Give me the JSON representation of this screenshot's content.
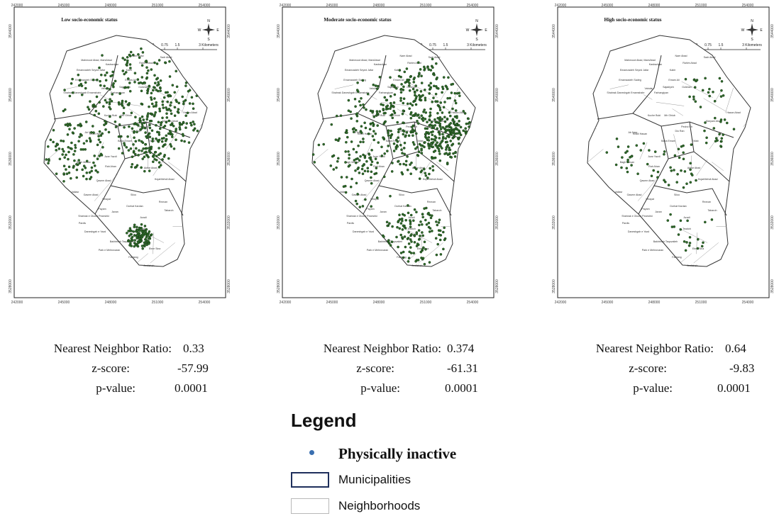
{
  "panels": [
    {
      "title": "Low socio-economic status",
      "x_ticks": [
        "242000",
        "245000",
        "248000",
        "251000",
        "254000"
      ],
      "y_ticks": [
        "3528000",
        "3532000",
        "3536000",
        "3540000",
        "3544000"
      ],
      "scale_ticks": [
        "0",
        "0.75",
        "1.5",
        "3 Kilometers"
      ],
      "point_density": 620,
      "stats": {
        "nnr_label": "Nearest Neighbor Ratio:",
        "nnr": "0.33",
        "z_label": "z-score:",
        "z": "-57.99",
        "p_label": "p-value:",
        "p": "0.0001"
      }
    },
    {
      "title": "Moderate socio-economic status",
      "x_ticks": [
        "242000",
        "245000",
        "248000",
        "251000",
        "254000"
      ],
      "y_ticks": [
        "3528000",
        "3532000",
        "3536000",
        "3540000",
        "3544000"
      ],
      "scale_ticks": [
        "0",
        "0.75",
        "1.5",
        "3 Kilometers"
      ],
      "point_density": 760,
      "stats": {
        "nnr_label": "Nearest Neighbor Ratio:",
        "nnr": "0.374",
        "z_label": "z-score:",
        "z": "-61.31",
        "p_label": "p-value:",
        "p": "0.0001"
      }
    },
    {
      "title": "High socio-economic status",
      "x_ticks": [
        "242000",
        "245000",
        "248000",
        "251000",
        "254000"
      ],
      "y_ticks": [
        "3528000",
        "3532000",
        "3536000",
        "3540000",
        "3544000"
      ],
      "scale_ticks": [
        "0",
        "0.75",
        "1.5",
        "3 Kilometers"
      ],
      "point_density": 120,
      "stats": {
        "nnr_label": "Nearest Neighbor Ratio:",
        "nnr": "0.64",
        "z_label": "z-score:",
        "z": "-9.83",
        "p_label": "p-value:",
        "p": "0.0001"
      }
    }
  ],
  "neighborhood_labels": [
    "Mahmood Abad, MarkAbad",
    "Emamzadeh Seyed Jafar",
    "Naer Abad",
    "Sadr Abad",
    "Kasbaviyan",
    "Rahim Abad",
    "Emamzadeh Sadeg",
    "Vahdat",
    "Kabir",
    "Shahrak Daneshgah Emamshahr",
    "Emam Ali",
    "Sajadiyeh",
    "Farhangiyan",
    "Golshan",
    "Hasan Abad",
    "Mir Ghiub",
    "Kuche Buki",
    "Maryam Abad",
    "Pedrol Kh",
    "Dio Ran",
    "Khalil Hasan",
    "Baba Emam",
    "Eblab",
    "Azar Yazdi",
    "Bagh Mesan",
    "Rah Ahan",
    "Qasem Abad",
    "Akbar Abad",
    "Hojat",
    "Mehdi Abad",
    "Velayat",
    "Siloo",
    "Rezvan",
    "Shahrak e Oloom Pezeshki",
    "Azadi",
    "Pardis",
    "Daneshgah e Yazd",
    "Bakhtmah Taquvatieh",
    "Park e Mehrovaran",
    "Ebne Sina",
    "Farhang",
    "Andisheh",
    "Valiasr",
    "Payam",
    "Dorhat Kardan",
    "Javan",
    "Tabaroh",
    "Teadoh",
    "Ab Nasr",
    "Gasem Abad"
  ],
  "compass": {
    "n": "N",
    "s": "S",
    "e": "E",
    "w": "W"
  },
  "legend": {
    "title": "Legend",
    "items": [
      {
        "label": "Physically inactive",
        "symbol": "point",
        "color": "#3a6fb0"
      },
      {
        "label": "Municipalities",
        "symbol": "box",
        "color": "#1f2f5c"
      },
      {
        "label": "Neighborhoods",
        "symbol": "box",
        "color": "#b8b8b8"
      }
    ]
  },
  "colors": {
    "point_fill": "#2f6b2a",
    "point_stroke": "#0e2a0c",
    "municipality_line": "#333333",
    "neighborhood_line": "#9a9a9a"
  }
}
